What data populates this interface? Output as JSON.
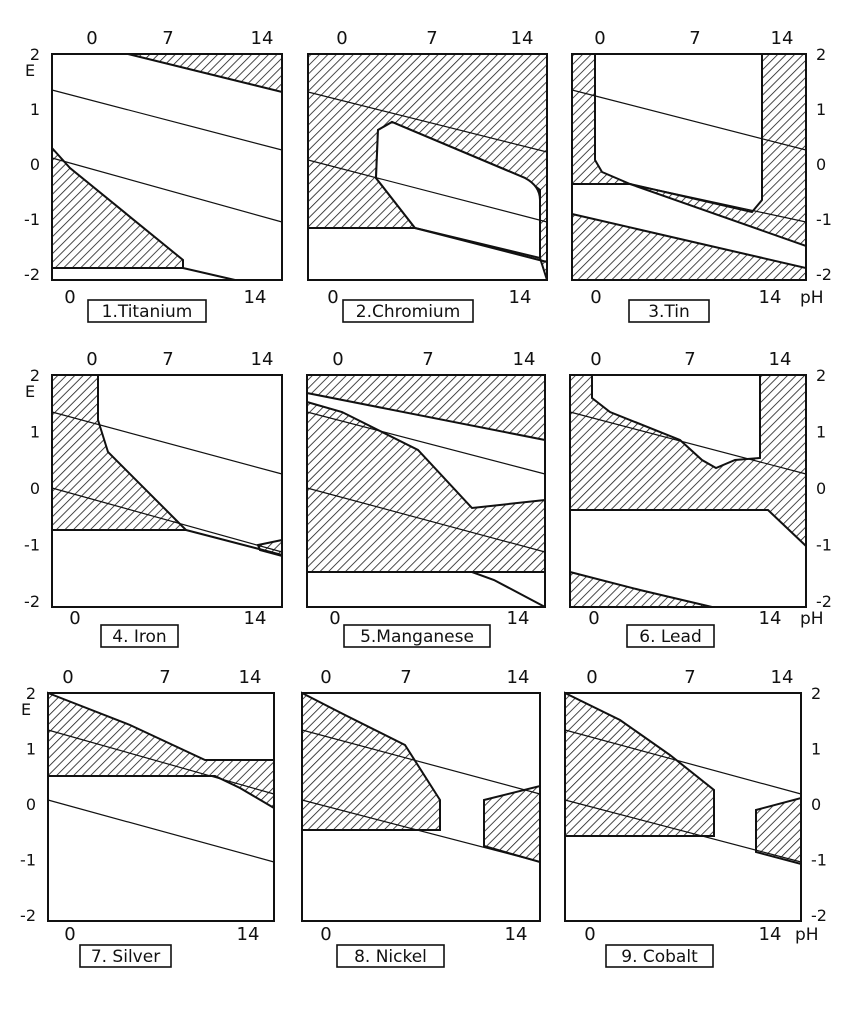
{
  "figure": {
    "e_axis_label": "E",
    "ph_axis_label": "pH",
    "panels": [
      {
        "caption": "1.Titanium",
        "top_ticks": [
          "0",
          "7",
          "14"
        ],
        "bottom_ticks": [
          "0",
          "14"
        ],
        "y_ticks": [
          "2",
          "1",
          "0",
          "-1",
          "-2"
        ],
        "y_side": "left"
      },
      {
        "caption": "2.Chromium",
        "top_ticks": [
          "0",
          "7",
          "14"
        ],
        "bottom_ticks": [
          "0",
          "14"
        ],
        "y_ticks": [],
        "y_side": "none"
      },
      {
        "caption": "3.Tin",
        "top_ticks": [
          "0",
          "7",
          "14"
        ],
        "bottom_ticks": [
          "0",
          "14"
        ],
        "y_ticks": [
          "2",
          "1",
          "0",
          "-1",
          "-2"
        ],
        "y_side": "right"
      },
      {
        "caption": "4. Iron",
        "top_ticks": [
          "0",
          "7",
          "14"
        ],
        "bottom_ticks": [
          "0",
          "14"
        ],
        "y_ticks": [
          "2",
          "1",
          "0",
          "-1",
          "-2"
        ],
        "y_side": "left"
      },
      {
        "caption": "5.Manganese",
        "top_ticks": [
          "0",
          "7",
          "14"
        ],
        "bottom_ticks": [
          "0",
          "14"
        ],
        "y_ticks": [],
        "y_side": "none"
      },
      {
        "caption": "6. Lead",
        "top_ticks": [
          "0",
          "7",
          "14"
        ],
        "bottom_ticks": [
          "0",
          "14"
        ],
        "y_ticks": [
          "2",
          "1",
          "0",
          "-1",
          "-2"
        ],
        "y_side": "right"
      },
      {
        "caption": "7. Silver",
        "top_ticks": [
          "0",
          "7",
          "14"
        ],
        "bottom_ticks": [
          "0",
          "14"
        ],
        "y_ticks": [
          "2",
          "1",
          "0",
          "-1",
          "-2"
        ],
        "y_side": "left"
      },
      {
        "caption": "8. Nickel",
        "top_ticks": [
          "0",
          "7",
          "14"
        ],
        "bottom_ticks": [
          "0",
          "14"
        ],
        "y_ticks": [],
        "y_side": "none"
      },
      {
        "caption": "9. Cobalt",
        "top_ticks": [
          "0",
          "7",
          "14"
        ],
        "bottom_ticks": [
          "0",
          "14"
        ],
        "y_ticks": [
          "2",
          "1",
          "0",
          "-1",
          "-2"
        ],
        "y_side": "right"
      }
    ]
  }
}
